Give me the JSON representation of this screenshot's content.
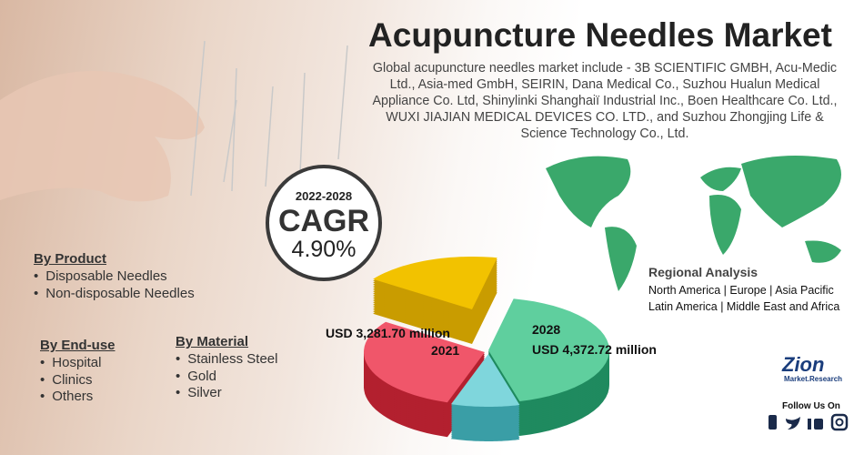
{
  "header": {
    "title": "Acupuncture Needles Market",
    "description": "Global acupuncture needles market include - 3B SCIENTIFIC GMBH, Acu-Medic Ltd., Asia-med GmbH, SEIRIN, Dana Medical Co., Suzhou Hualun Medical Appliance Co. Ltd, Shinylinki Shanghaiï Industrial Inc., Boen Healthcare Co. Ltd., WUXI JIAJIAN MEDICAL DEVICES CO. LTD., and Suzhou Zhongjing Life & Science Technology Co., Ltd."
  },
  "cagr": {
    "period": "2022-2028",
    "label": "CAGR",
    "value": "4.90%"
  },
  "segments": [
    {
      "title": "By Product",
      "items": [
        "Disposable Needles",
        "Non-disposable Needles"
      ]
    },
    {
      "title": "By End-use",
      "items": [
        "Hospital",
        "Clinics",
        "Others"
      ]
    },
    {
      "title": "By Material",
      "items": [
        "Stainless Steel",
        "Gold",
        "Silver"
      ]
    }
  ],
  "market": {
    "value_2021": "USD 3,281.70 million",
    "year_2021": "2021",
    "year_2028": "2028",
    "value_2028": "USD 4,372.72 million"
  },
  "regional": {
    "title": "Regional Analysis",
    "line1": "North America | Europe | Asia Pacific",
    "line2": "Latin America | Middle East and Africa"
  },
  "brand": {
    "logo": "Zion",
    "sub": "Market.Research"
  },
  "social": {
    "title": "Follow Us On"
  }
}
